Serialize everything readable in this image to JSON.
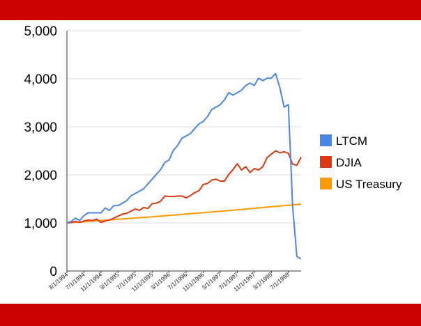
{
  "theme": {
    "band_color": "#cc0000",
    "axis_color": "#333333",
    "grid_color": "#d9d9d9"
  },
  "chart_data": {
    "type": "line",
    "title": "",
    "xlabel": "",
    "ylabel": "",
    "ylim": [
      0,
      5000
    ],
    "yticks": [
      0,
      1000,
      2000,
      3000,
      4000,
      5000
    ],
    "ytick_labels": [
      "0",
      "1,000",
      "2,000",
      "3,000",
      "4,000",
      "5,000"
    ],
    "x_tick_labels": [
      "3/1/1994",
      "7/1/1994",
      "11/1/1994",
      "3/1/1995",
      "7/1/1995",
      "11/1/1995",
      "3/1/1996",
      "7/1/1996",
      "11/1/1996",
      "3/1/1997",
      "7/1/1997",
      "11/1/1997",
      "3/1/1998",
      "7/1/1998"
    ],
    "x": [
      "3/1/1994",
      "4/1/1994",
      "5/1/1994",
      "6/1/1994",
      "7/1/1994",
      "8/1/1994",
      "9/1/1994",
      "10/1/1994",
      "11/1/1994",
      "12/1/1994",
      "1/1/1995",
      "2/1/1995",
      "3/1/1995",
      "4/1/1995",
      "5/1/1995",
      "6/1/1995",
      "7/1/1995",
      "8/1/1995",
      "9/1/1995",
      "10/1/1995",
      "11/1/1995",
      "12/1/1995",
      "1/1/1996",
      "2/1/1996",
      "3/1/1996",
      "4/1/1996",
      "5/1/1996",
      "6/1/1996",
      "7/1/1996",
      "8/1/1996",
      "9/1/1996",
      "10/1/1996",
      "11/1/1996",
      "12/1/1996",
      "1/1/1997",
      "2/1/1997",
      "3/1/1997",
      "4/1/1997",
      "5/1/1997",
      "6/1/1997",
      "7/1/1997",
      "8/1/1997",
      "9/1/1997",
      "10/1/1997",
      "11/1/1997",
      "12/1/1997",
      "1/1/1998",
      "2/1/1998",
      "3/1/1998",
      "4/1/1998",
      "5/1/1998",
      "6/1/1998",
      "7/1/1998",
      "8/1/1998",
      "9/1/1998",
      "10/1/1998"
    ],
    "series": [
      {
        "name": "LTCM",
        "color": "#4a86e8",
        "values": [
          1000,
          1030,
          1100,
          1050,
          1150,
          1210,
          1210,
          1210,
          1210,
          1310,
          1260,
          1360,
          1360,
          1410,
          1460,
          1560,
          1610,
          1660,
          1710,
          1810,
          1910,
          2010,
          2110,
          2260,
          2310,
          2510,
          2610,
          2760,
          2810,
          2860,
          2960,
          3060,
          3110,
          3210,
          3360,
          3410,
          3460,
          3560,
          3710,
          3660,
          3710,
          3760,
          3860,
          3910,
          3860,
          4010,
          3960,
          4010,
          4010,
          4110,
          3810,
          3410,
          3460,
          1350,
          300,
          250
        ]
      },
      {
        "name": "DJIA",
        "color": "#dc3912",
        "values": [
          1000,
          1010,
          1030,
          1010,
          1040,
          1060,
          1050,
          1080,
          1010,
          1040,
          1060,
          1100,
          1140,
          1180,
          1200,
          1240,
          1290,
          1260,
          1320,
          1300,
          1400,
          1410,
          1450,
          1560,
          1550,
          1550,
          1560,
          1560,
          1520,
          1570,
          1630,
          1670,
          1800,
          1820,
          1890,
          1910,
          1870,
          1870,
          2010,
          2110,
          2230,
          2100,
          2170,
          2050,
          2130,
          2100,
          2170,
          2360,
          2430,
          2500,
          2460,
          2480,
          2450,
          2220,
          2200,
          2370
        ]
      },
      {
        "name": "US Treasury",
        "color": "#ff9900",
        "values": [
          1000,
          1006,
          1012,
          1018,
          1024,
          1030,
          1037,
          1043,
          1049,
          1056,
          1062,
          1068,
          1075,
          1081,
          1088,
          1094,
          1101,
          1108,
          1114,
          1121,
          1128,
          1135,
          1142,
          1149,
          1156,
          1163,
          1170,
          1177,
          1184,
          1191,
          1198,
          1206,
          1213,
          1220,
          1228,
          1235,
          1242,
          1250,
          1257,
          1265,
          1273,
          1280,
          1288,
          1296,
          1304,
          1312,
          1320,
          1328,
          1336,
          1344,
          1352,
          1360,
          1368,
          1376,
          1384,
          1393
        ]
      }
    ],
    "grid": true,
    "legend_position": "right"
  }
}
